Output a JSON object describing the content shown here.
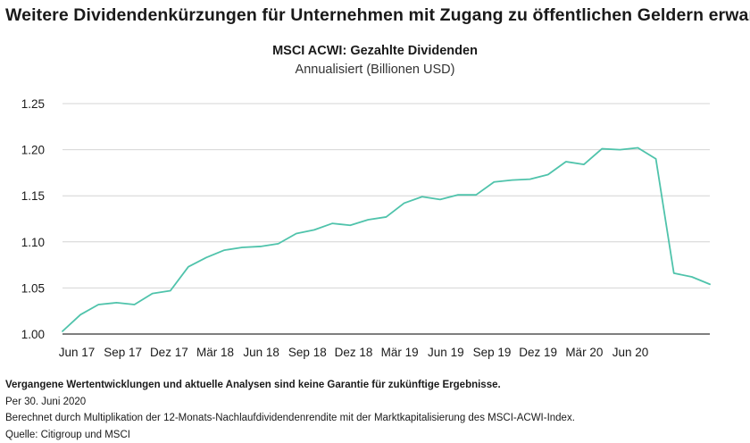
{
  "headline": "Weitere Dividendenkürzungen für Unternehmen mit Zugang zu öffentlichen Geldern erwartet",
  "chart_data": {
    "type": "line",
    "title": "MSCI ACWI: Gezahlte Dividenden",
    "subtitle": "Annualisiert (Billionen USD)",
    "xlabel": "",
    "ylabel": "",
    "ylim": [
      1.0,
      1.25
    ],
    "yticks": [
      "1.00",
      "1.05",
      "1.10",
      "1.15",
      "1.20",
      "1.25"
    ],
    "xticks": [
      "Jun 17",
      "Sep 17",
      "Dez 17",
      "Mär 18",
      "Jun 18",
      "Sep 18",
      "Dez 18",
      "Mär 19",
      "Jun 19",
      "Sep 19",
      "Dez 19",
      "Mär 20",
      "Jun 20"
    ],
    "grid": "horizontal",
    "line_color": "#4fc3ab",
    "x": [
      "2017-06-30",
      "2017-07-31",
      "2017-08-31",
      "2017-09-30",
      "2017-10-31",
      "2017-11-30",
      "2017-12-31",
      "2018-01-31",
      "2018-02-28",
      "2018-03-31",
      "2018-04-30",
      "2018-05-31",
      "2018-06-30",
      "2018-07-31",
      "2018-08-31",
      "2018-09-30",
      "2018-10-31",
      "2018-11-30",
      "2018-12-31",
      "2019-01-31",
      "2019-02-28",
      "2019-03-31",
      "2019-04-30",
      "2019-05-31",
      "2019-06-30",
      "2019-07-31",
      "2019-08-31",
      "2019-09-30",
      "2019-10-31",
      "2019-11-30",
      "2019-12-31",
      "2020-01-31",
      "2020-02-29",
      "2020-03-31",
      "2020-04-30",
      "2020-05-31",
      "2020-06-30"
    ],
    "series": [
      {
        "values": [
          1.003,
          1.021,
          1.032,
          1.034,
          1.032,
          1.044,
          1.047,
          1.073,
          1.083,
          1.091,
          1.094,
          1.095,
          1.098,
          1.109,
          1.113,
          1.12,
          1.118,
          1.124,
          1.127,
          1.142,
          1.149,
          1.146,
          1.151,
          1.151,
          1.165,
          1.167,
          1.168,
          1.173,
          1.187,
          1.184,
          1.201,
          1.2,
          1.202,
          1.19,
          1.066,
          1.062,
          1.054
        ]
      }
    ]
  },
  "footer": {
    "disclaimer": "Vergangene Wertentwicklungen und aktuelle Analysen sind keine Garantie für zukünftige Ergebnisse.",
    "date": "Per 30. Juni 2020",
    "method": "Berechnet durch Multiplikation der 12-Monats-Nachlaufdividendenrendite mit der Marktkapitalisierung des MSCI-ACWI-Index.",
    "source": "Quelle: Citigroup und MSCI"
  }
}
